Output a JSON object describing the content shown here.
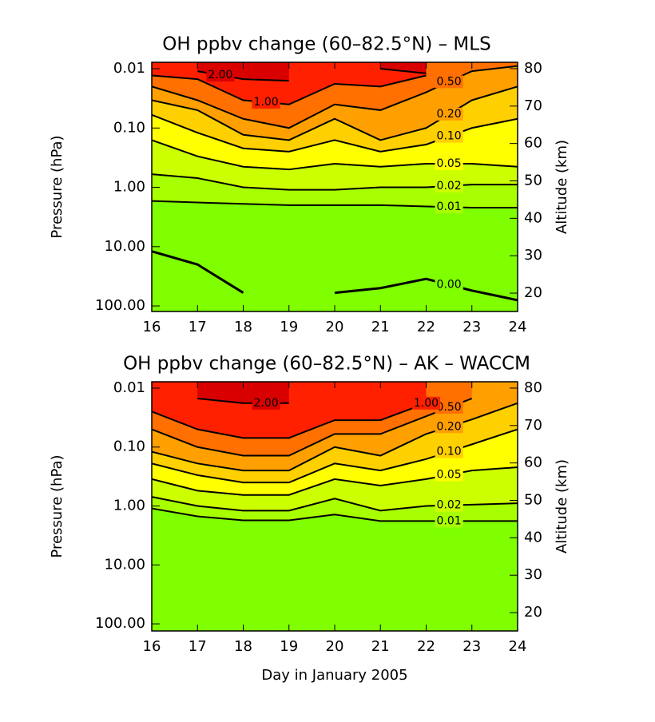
{
  "chart_data": [
    {
      "type": "contour",
      "title": "OH ppbv change (60–82.5°N) – MLS",
      "ylabel": "Pressure (hPa)",
      "y2label": "Altitude (km)",
      "log_y": true,
      "x": [
        16,
        17,
        18,
        19,
        20,
        21,
        22,
        23,
        24
      ],
      "xlim": [
        16,
        24
      ],
      "xticks": [
        16,
        17,
        18,
        19,
        20,
        21,
        22,
        23,
        24
      ],
      "ylim": [
        0.0078,
        124
      ],
      "yticks": [
        {
          "value": 0.01,
          "label": "0.01"
        },
        {
          "value": 0.1,
          "label": "0.10"
        },
        {
          "value": 1,
          "label": "1.00"
        },
        {
          "value": 10,
          "label": "10.00"
        },
        {
          "value": 100,
          "label": "100.00"
        }
      ],
      "y2lim": [
        15.1,
        81.7
      ],
      "y2ticks": [
        20,
        30,
        40,
        50,
        60,
        70,
        80
      ],
      "levels": [
        {
          "value": 0,
          "label": "0.00"
        },
        {
          "value": 0.01,
          "label": "0.01"
        },
        {
          "value": 0.02,
          "label": "0.02"
        },
        {
          "value": 0.05,
          "label": "0.05"
        },
        {
          "value": 0.1,
          "label": "0.10"
        },
        {
          "value": 0.2,
          "label": "0.20"
        },
        {
          "value": 0.5,
          "label": "0.50"
        },
        {
          "value": 1,
          "label": "1.00"
        },
        {
          "value": 2,
          "label": "2.00"
        }
      ],
      "colors": [
        "#7fff00",
        "#7fff00",
        "#a8ff00",
        "#ccff00",
        "#ffff00",
        "#ffd000",
        "#ffa000",
        "#ff7000",
        "#ff2000",
        "#d80000"
      ],
      "contours": [
        [
          12,
          20,
          60,
          null,
          60,
          50,
          35,
          55,
          80
        ],
        [
          1.7,
          1.8,
          1.9,
          2.0,
          2.0,
          2.0,
          2.1,
          2.2,
          2.2
        ],
        [
          0.6,
          0.7,
          1.0,
          1.1,
          1.1,
          1.0,
          1.0,
          0.9,
          0.9
        ],
        [
          0.16,
          0.3,
          0.45,
          0.5,
          0.4,
          0.45,
          0.4,
          0.4,
          0.45
        ],
        [
          0.06,
          0.12,
          0.22,
          0.25,
          0.16,
          0.25,
          0.19,
          0.1,
          0.07
        ],
        [
          0.034,
          0.05,
          0.13,
          0.16,
          0.07,
          0.16,
          0.1,
          0.034,
          0.02
        ],
        [
          0.02,
          0.034,
          0.07,
          0.1,
          0.04,
          0.05,
          0.025,
          0.011,
          0.009
        ],
        [
          0.013,
          0.015,
          0.034,
          0.04,
          0.018,
          0.02,
          0.013,
          null,
          null
        ],
        [
          null,
          0.011,
          0.015,
          0.016,
          null,
          0.01,
          0.012,
          null,
          null
        ]
      ]
    },
    {
      "type": "contour",
      "title": "OH ppbv change (60–82.5°N) – AK – WACCM",
      "xlabel": "Day in January 2005",
      "ylabel": "Pressure (hPa)",
      "y2label": "Altitude (km)",
      "log_y": true,
      "x": [
        16,
        17,
        18,
        19,
        20,
        21,
        22,
        23,
        24
      ],
      "xlim": [
        16,
        24
      ],
      "xticks": [
        16,
        17,
        18,
        19,
        20,
        21,
        22,
        23,
        24
      ],
      "ylim": [
        0.0078,
        132
      ],
      "yticks": [
        {
          "value": 0.01,
          "label": "0.01"
        },
        {
          "value": 0.1,
          "label": "0.10"
        },
        {
          "value": 1,
          "label": "1.00"
        },
        {
          "value": 10,
          "label": "10.00"
        },
        {
          "value": 100,
          "label": "100.00"
        }
      ],
      "y2lim": [
        15.1,
        81.7
      ],
      "y2ticks": [
        20,
        30,
        40,
        50,
        60,
        70,
        80
      ],
      "levels": [
        {
          "value": 0.01,
          "label": "0.01"
        },
        {
          "value": 0.02,
          "label": "0.02"
        },
        {
          "value": 0.05,
          "label": "0.05"
        },
        {
          "value": 0.1,
          "label": "0.10"
        },
        {
          "value": 0.2,
          "label": "0.20"
        },
        {
          "value": 0.5,
          "label": "0.50"
        },
        {
          "value": 1,
          "label": "1.00"
        },
        {
          "value": 2,
          "label": "2.00"
        }
      ],
      "colors": [
        "#7fff00",
        "#a8ff00",
        "#ccff00",
        "#ffff00",
        "#ffd000",
        "#ffa000",
        "#ff7000",
        "#ff2000",
        "#d80000"
      ],
      "contours": [
        [
          1.1,
          1.5,
          1.75,
          1.75,
          1.4,
          1.8,
          1.8,
          1.8,
          1.8
        ],
        [
          0.7,
          1.0,
          1.2,
          1.2,
          0.75,
          1.2,
          1.0,
          0.95,
          0.9
        ],
        [
          0.35,
          0.55,
          0.65,
          0.65,
          0.35,
          0.45,
          0.35,
          0.25,
          0.22
        ],
        [
          0.19,
          0.3,
          0.4,
          0.4,
          0.19,
          0.25,
          0.16,
          0.09,
          0.05
        ],
        [
          0.12,
          0.19,
          0.25,
          0.25,
          0.1,
          0.14,
          0.06,
          0.034,
          0.018
        ],
        [
          0.05,
          0.1,
          0.14,
          0.14,
          0.06,
          0.06,
          0.03,
          0.015,
          null
        ],
        [
          0.025,
          0.05,
          0.07,
          0.07,
          0.035,
          0.035,
          0.018,
          null,
          null
        ],
        [
          null,
          0.015,
          0.018,
          0.018,
          null,
          0.011,
          null,
          null,
          null
        ]
      ]
    }
  ]
}
